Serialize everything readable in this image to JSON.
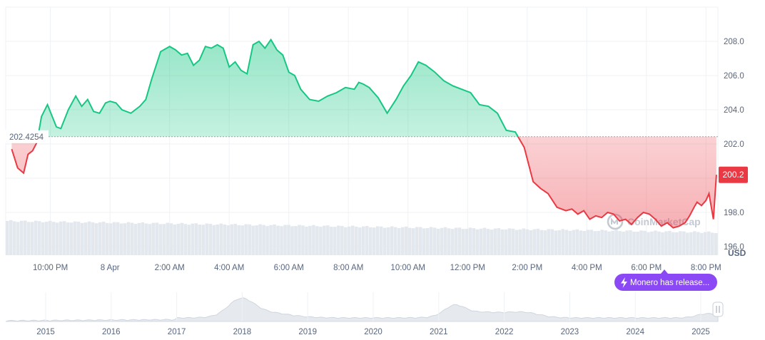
{
  "chart_data": {
    "type": "area",
    "unit_label": "USD",
    "baseline": 202.4254,
    "baseline_label": "202.4254",
    "current_value_label": "200.2",
    "ylim": [
      195.5,
      210
    ],
    "y_ticks": [
      196.0,
      198.0,
      200.0,
      202.0,
      204.0,
      206.0,
      208.0
    ],
    "y_tick_labels": [
      "196.0",
      "198.0",
      "",
      "202.0",
      "204.0",
      "206.0",
      "208.0"
    ],
    "xlim": [
      0,
      23.9
    ],
    "x_ticks": [
      1.5,
      3.5,
      5.5,
      7.5,
      9.5,
      11.5,
      13.5,
      15.5,
      17.5,
      19.5,
      21.5,
      23.5
    ],
    "x_tick_labels": [
      "10:00 PM",
      "8 Apr",
      "2:00 AM",
      "4:00 AM",
      "6:00 AM",
      "8:00 AM",
      "10:00 AM",
      "12:00 PM",
      "2:00 PM",
      "4:00 PM",
      "6:00 PM",
      "8:00 PM"
    ],
    "series": [
      {
        "x": [
          0.2,
          0.4,
          0.6,
          0.75,
          0.9,
          1.05,
          1.2,
          1.4,
          1.7,
          1.85,
          2.1,
          2.35,
          2.55,
          2.75,
          2.95,
          3.15,
          3.35,
          3.5,
          3.7,
          3.9,
          4.2,
          4.5,
          4.7,
          4.9,
          5.2,
          5.5,
          5.7,
          5.9,
          6.1,
          6.3,
          6.5,
          6.7,
          6.9,
          7.1,
          7.3,
          7.5,
          7.7,
          7.9,
          8.1,
          8.3,
          8.5,
          8.7,
          8.9,
          9.1,
          9.3,
          9.5,
          9.7,
          9.9,
          10.2,
          10.5,
          10.8,
          11.1,
          11.4,
          11.7,
          11.85,
          12.0,
          12.2,
          12.5,
          12.8,
          13.1,
          13.35,
          13.6,
          13.85,
          14.1,
          14.4,
          14.7,
          15.0,
          15.3,
          15.6,
          15.9,
          16.2,
          16.5,
          16.8,
          17.1,
          17.4,
          17.7,
          17.95,
          18.2,
          18.5,
          18.8,
          19.0,
          19.2,
          19.4,
          19.6,
          19.8,
          20.0,
          20.2,
          20.4,
          20.6,
          20.8,
          21.0,
          21.2,
          21.4,
          21.6,
          21.8,
          22.0,
          22.2,
          22.4,
          22.6,
          22.8,
          22.95,
          23.1,
          23.2,
          23.35,
          23.5,
          23.6,
          23.75,
          23.85
        ],
        "y": [
          201.7,
          200.6,
          200.3,
          201.4,
          201.6,
          202.1,
          203.6,
          204.3,
          203.0,
          202.9,
          204.0,
          204.8,
          204.2,
          204.6,
          203.9,
          203.8,
          204.4,
          204.5,
          204.4,
          204.0,
          203.8,
          204.2,
          204.6,
          205.8,
          207.4,
          207.7,
          207.5,
          207.2,
          207.3,
          206.6,
          206.9,
          207.7,
          207.6,
          207.8,
          207.6,
          206.5,
          206.8,
          206.3,
          206.1,
          207.8,
          208.0,
          207.6,
          208.1,
          207.5,
          207.2,
          206.2,
          206.0,
          205.2,
          204.6,
          204.5,
          204.8,
          205.0,
          205.3,
          205.2,
          205.6,
          205.5,
          205.3,
          204.7,
          203.8,
          204.6,
          205.4,
          206.0,
          206.8,
          206.6,
          206.2,
          205.7,
          205.4,
          205.2,
          205.0,
          204.3,
          204.2,
          203.8,
          202.8,
          202.7,
          201.8,
          199.8,
          199.4,
          199.1,
          198.3,
          198.1,
          198.2,
          197.9,
          198.1,
          197.6,
          197.8,
          197.7,
          198.0,
          197.9,
          197.5,
          197.6,
          197.3,
          197.7,
          198.0,
          197.9,
          197.6,
          197.2,
          197.4,
          197.1,
          197.2,
          197.4,
          197.8,
          198.3,
          198.6,
          198.4,
          198.7,
          199.1,
          197.6,
          200.2
        ]
      }
    ],
    "volume_note": "",
    "overview": {
      "labels": [
        "2015",
        "2016",
        "2017",
        "2018",
        "2019",
        "2020",
        "2021",
        "2022",
        "2023",
        "2024",
        "2025"
      ]
    },
    "watermark": "CoinMarketCap",
    "event_badge": "Monero has release...",
    "colors": {
      "up": "#16c784",
      "down": "#ea3943",
      "grid": "#eff2f5",
      "axis_text": "#58667e",
      "badge": "#8b48f5",
      "volume": "#e3e8ee"
    }
  }
}
